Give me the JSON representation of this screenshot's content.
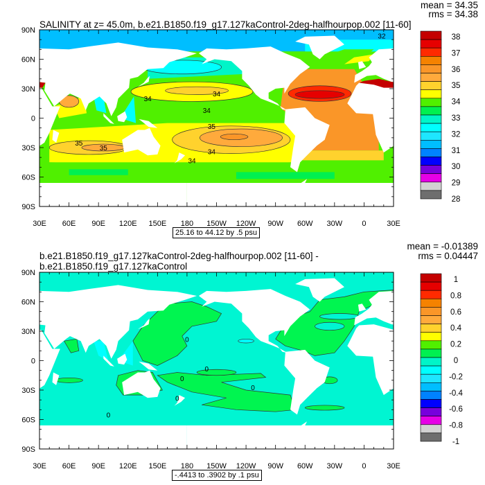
{
  "panels": [
    {
      "id": "salinity",
      "title": "SALINITY at z=  45.0m, b.e21.B1850.f19_g17.127kaControl-2deg-halfhourpop.002 [11-60]",
      "mean": "mean = 34.35",
      "rms": "rms = 34.38",
      "info": "25.16 to 44.12 by .5 psu",
      "colorbar_labels": [
        "38",
        "37",
        "36",
        "35",
        "34",
        "33",
        "32",
        "31",
        "30",
        "29",
        "28"
      ],
      "contour_labels": [
        "34",
        "34",
        "34",
        "35",
        "35",
        "34",
        "35",
        "34",
        "32"
      ]
    },
    {
      "id": "difference",
      "title": "b.e21.B1850.f19_g17.127kaControl-2deg-halfhourpop.002 [11-60] - b.e21.B1850.f19_g17.127kaControl",
      "mean": "mean = -0.01389",
      "rms": "rms = 0.04447",
      "info": "-.4413 to .3902 by .1 psu",
      "colorbar_labels": [
        "1",
        "0.8",
        "0.6",
        "0.4",
        "0.2",
        "0",
        "-0.2",
        "-0.4",
        "-0.6",
        "-0.8",
        "-1"
      ],
      "contour_labels": [
        "0",
        "0",
        "0",
        "0",
        "0",
        "0",
        "0"
      ]
    }
  ],
  "axes": {
    "lat_labels": [
      "90N",
      "60N",
      "30N",
      "0",
      "30S",
      "60S",
      "90S"
    ],
    "lon_labels": [
      "30E",
      "60E",
      "90E",
      "120E",
      "150E",
      "180",
      "150W",
      "120W",
      "90W",
      "60W",
      "30W",
      "0",
      "30E"
    ]
  },
  "colors": {
    "colorbar": [
      "#c40000",
      "#e60000",
      "#ff2a00",
      "#f58200",
      "#fa9628",
      "#ffaa3c",
      "#ffd22d",
      "#ffff00",
      "#50f000",
      "#00f050",
      "#00f5c8",
      "#00ffff",
      "#1ee6ff",
      "#00beff",
      "#0082ff",
      "#0000ff",
      "#7800dc",
      "#e600e6",
      "#d2d2d2",
      "#6e6e6e"
    ],
    "land": "#ffffff"
  }
}
